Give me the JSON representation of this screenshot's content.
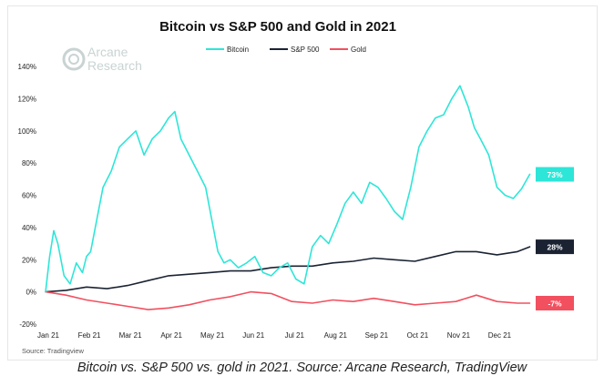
{
  "brand": {
    "line1": "Arcane",
    "line2": "Research"
  },
  "caption": "Bitcoin vs. S&P 500 vs. gold in 2021. Source: Arcane Research, TradingView",
  "chart_data": {
    "type": "line",
    "title": "Bitcoin vs S&P 500 and Gold in 2021",
    "source": "Source: Tradingview",
    "legend_position": "top-center",
    "grid": false,
    "ylim": [
      -20,
      140
    ],
    "yticks": [
      -20,
      0,
      20,
      40,
      60,
      80,
      100,
      120,
      140
    ],
    "ytick_labels": [
      "-20%",
      "0%",
      "20%",
      "40%",
      "60%",
      "80%",
      "100%",
      "120%",
      "140%"
    ],
    "xlim": [
      0,
      11.9
    ],
    "xticks": [
      0,
      1,
      2,
      3,
      4,
      5,
      6,
      7,
      8,
      9,
      10,
      11
    ],
    "xtick_labels": [
      "Jan 21",
      "Feb 21",
      "Mar 21",
      "Apr 21",
      "May 21",
      "Jun 21",
      "Jul 21",
      "Aug 21",
      "Sep 21",
      "Oct 21",
      "Nov 21",
      "Dec 21"
    ],
    "series": [
      {
        "name": "Bitcoin",
        "color": "#2de6d8",
        "end_label": "73%",
        "x": [
          0,
          0.1,
          0.2,
          0.3,
          0.45,
          0.6,
          0.75,
          0.9,
          1.0,
          1.1,
          1.25,
          1.4,
          1.6,
          1.8,
          2.0,
          2.2,
          2.4,
          2.6,
          2.8,
          3.0,
          3.15,
          3.3,
          3.5,
          3.7,
          3.9,
          4.05,
          4.2,
          4.35,
          4.5,
          4.7,
          4.9,
          5.1,
          5.3,
          5.5,
          5.7,
          5.9,
          6.1,
          6.3,
          6.5,
          6.7,
          6.9,
          7.1,
          7.3,
          7.5,
          7.7,
          7.9,
          8.1,
          8.3,
          8.5,
          8.7,
          8.9,
          9.1,
          9.3,
          9.5,
          9.7,
          9.9,
          10.1,
          10.3,
          10.45,
          10.6,
          10.8,
          11.0,
          11.2,
          11.4,
          11.6,
          11.8
        ],
        "y": [
          0,
          22,
          38,
          30,
          10,
          5,
          18,
          12,
          22,
          25,
          45,
          65,
          75,
          90,
          95,
          100,
          85,
          95,
          100,
          108,
          112,
          95,
          85,
          75,
          65,
          45,
          25,
          18,
          20,
          15,
          18,
          22,
          12,
          10,
          15,
          18,
          8,
          5,
          28,
          35,
          30,
          42,
          55,
          62,
          55,
          68,
          65,
          58,
          50,
          45,
          65,
          90,
          100,
          108,
          110,
          120,
          128,
          115,
          102,
          95,
          85,
          65,
          60,
          58,
          64,
          73
        ]
      },
      {
        "name": "S&P 500",
        "color": "#1b2333",
        "end_label": "28%",
        "x": [
          0,
          0.5,
          1,
          1.5,
          2,
          2.5,
          3,
          3.5,
          4,
          4.5,
          5,
          5.5,
          6,
          6.5,
          7,
          7.5,
          8,
          8.5,
          9,
          9.5,
          10,
          10.5,
          11,
          11.5,
          11.8
        ],
        "y": [
          0,
          1,
          3,
          2,
          4,
          7,
          10,
          11,
          12,
          13,
          13,
          15,
          16,
          16,
          18,
          19,
          21,
          20,
          19,
          22,
          25,
          25,
          23,
          25,
          28
        ]
      },
      {
        "name": "Gold",
        "color": "#f2505f",
        "end_label": "-7%",
        "x": [
          0,
          0.5,
          1,
          1.5,
          2,
          2.5,
          3,
          3.5,
          4,
          4.5,
          5,
          5.5,
          6,
          6.5,
          7,
          7.5,
          8,
          8.5,
          9,
          9.5,
          10,
          10.5,
          11,
          11.5,
          11.8
        ],
        "y": [
          0,
          -2,
          -5,
          -7,
          -9,
          -11,
          -10,
          -8,
          -5,
          -3,
          0,
          -1,
          -6,
          -7,
          -5,
          -6,
          -4,
          -6,
          -8,
          -7,
          -6,
          -2,
          -6,
          -7,
          -7
        ]
      }
    ]
  }
}
